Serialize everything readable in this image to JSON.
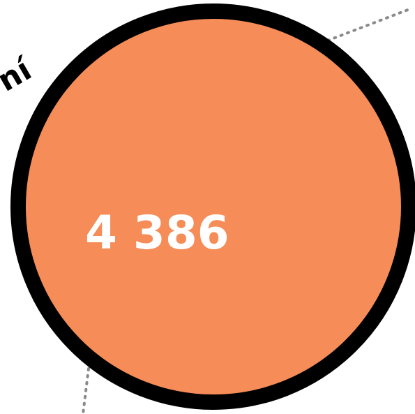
{
  "circle": {
    "value": "4 386",
    "fill_color": "#F68C58",
    "stroke_color": "#000000"
  },
  "arc_label": {
    "text": "ní"
  },
  "connector_color": "#8a8a8a"
}
